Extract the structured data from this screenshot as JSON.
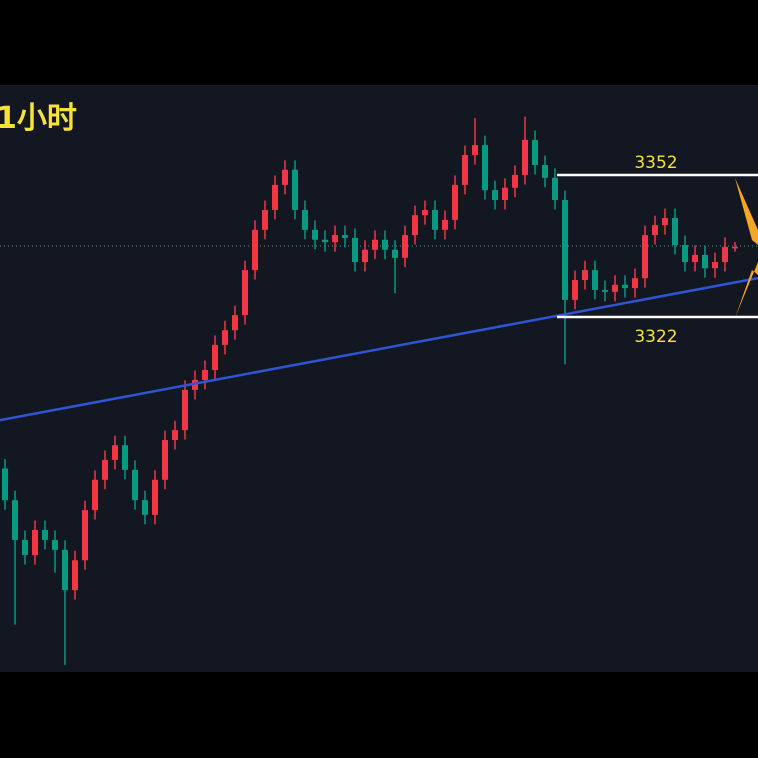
{
  "chart_data": {
    "type": "candlestick",
    "title": "1小时",
    "xlim": [
      -0.5,
      75.3
    ],
    "ylim": [
      3247,
      3371
    ],
    "up_color": "#f23645",
    "down_color": "#089981",
    "open": [
      3290.0,
      3283.3,
      3274.9,
      3271.7,
      3277.0,
      3274.9,
      3272.8,
      3264.3,
      3270.6,
      3281.2,
      3287.6,
      3291.8,
      3294.9,
      3289.7,
      3283.3,
      3280.2,
      3287.6,
      3296.0,
      3298.1,
      3306.6,
      3308.7,
      3310.8,
      3316.1,
      3319.2,
      3322.4,
      3331.9,
      3340.4,
      3344.6,
      3349.9,
      3353.1,
      3344.6,
      3340.4,
      3338.3,
      3337.8,
      3339.3,
      3338.7,
      3333.6,
      3336.2,
      3338.3,
      3336.2,
      3334.5,
      3339.3,
      3343.5,
      3344.6,
      3340.4,
      3342.5,
      3349.9,
      3356.2,
      3358.3,
      3348.8,
      3346.7,
      3349.3,
      3352.0,
      3359.4,
      3354.1,
      3351.4,
      3346.7,
      3325.6,
      3329.8,
      3331.9,
      3327.7,
      3327.3,
      3328.8,
      3328.1,
      3330.2,
      3339.3,
      3341.4,
      3342.9,
      3337.2,
      3333.6,
      3335.1,
      3332.3,
      3333.6,
      3336.8
    ],
    "high": [
      3292.0,
      3285.3,
      3276.9,
      3279.0,
      3279.0,
      3276.9,
      3274.8,
      3272.6,
      3283.2,
      3289.6,
      3293.8,
      3296.9,
      3296.9,
      3291.7,
      3285.3,
      3289.6,
      3298.0,
      3300.1,
      3308.6,
      3310.7,
      3312.8,
      3318.1,
      3321.2,
      3324.4,
      3333.9,
      3342.4,
      3346.6,
      3351.9,
      3355.1,
      3355.1,
      3346.6,
      3342.4,
      3340.3,
      3341.3,
      3341.3,
      3340.7,
      3338.2,
      3340.3,
      3340.3,
      3338.2,
      3341.3,
      3345.5,
      3346.6,
      3346.6,
      3344.5,
      3351.9,
      3358.2,
      3364.0,
      3360.3,
      3350.8,
      3351.3,
      3354.0,
      3364.3,
      3361.4,
      3356.1,
      3353.4,
      3348.7,
      3331.8,
      3333.9,
      3333.9,
      3329.7,
      3330.8,
      3330.8,
      3332.2,
      3341.3,
      3343.4,
      3344.9,
      3344.9,
      3339.2,
      3337.1,
      3337.1,
      3335.6,
      3338.8,
      3337.8
    ],
    "low": [
      3281.3,
      3257.0,
      3269.7,
      3269.7,
      3272.9,
      3268.0,
      3248.5,
      3262.3,
      3268.6,
      3279.2,
      3285.6,
      3289.8,
      3287.7,
      3281.3,
      3278.2,
      3278.2,
      3285.6,
      3294.0,
      3296.1,
      3304.6,
      3306.7,
      3308.8,
      3314.1,
      3317.2,
      3320.4,
      3329.9,
      3338.4,
      3342.6,
      3347.9,
      3342.6,
      3338.4,
      3336.3,
      3335.8,
      3335.8,
      3336.7,
      3331.6,
      3331.6,
      3334.2,
      3334.2,
      3327.0,
      3332.5,
      3337.3,
      3341.5,
      3338.4,
      3338.4,
      3340.5,
      3347.9,
      3354.2,
      3346.8,
      3344.7,
      3344.7,
      3347.3,
      3350.0,
      3352.1,
      3349.4,
      3344.7,
      3312.0,
      3323.6,
      3327.8,
      3325.7,
      3325.3,
      3325.3,
      3326.1,
      3326.1,
      3328.2,
      3337.3,
      3339.4,
      3335.2,
      3331.6,
      3331.6,
      3330.3,
      3330.3,
      3331.6,
      3335.8
    ],
    "close": [
      3283.3,
      3274.9,
      3271.7,
      3277.0,
      3274.9,
      3272.8,
      3264.3,
      3270.6,
      3281.2,
      3287.6,
      3291.8,
      3294.9,
      3289.7,
      3283.3,
      3280.2,
      3287.6,
      3296.0,
      3298.1,
      3306.6,
      3308.7,
      3310.8,
      3316.1,
      3319.2,
      3322.4,
      3331.9,
      3340.4,
      3344.6,
      3349.9,
      3353.1,
      3344.6,
      3340.4,
      3338.3,
      3337.8,
      3339.3,
      3338.7,
      3333.6,
      3336.2,
      3338.3,
      3336.2,
      3334.5,
      3339.3,
      3343.5,
      3344.6,
      3340.4,
      3342.5,
      3349.9,
      3356.2,
      3358.3,
      3348.8,
      3346.7,
      3349.3,
      3352.0,
      3359.4,
      3354.1,
      3351.4,
      3346.7,
      3325.6,
      3329.8,
      3331.9,
      3327.7,
      3327.3,
      3328.8,
      3328.1,
      3330.2,
      3339.3,
      3341.4,
      3342.9,
      3337.2,
      3333.6,
      3335.1,
      3332.3,
      3333.6,
      3336.8,
      3336.8
    ],
    "levels": [
      {
        "value": 3352
      },
      {
        "value": 3322
      }
    ],
    "levels_start": 55.2,
    "level_color": "#ffffff",
    "last_price": 3337.0,
    "trendline": {
      "x": [
        -0.5,
        75.3
      ],
      "y": [
        3300.2,
        3330.2
      ],
      "color": "#2f55d4"
    }
  }
}
